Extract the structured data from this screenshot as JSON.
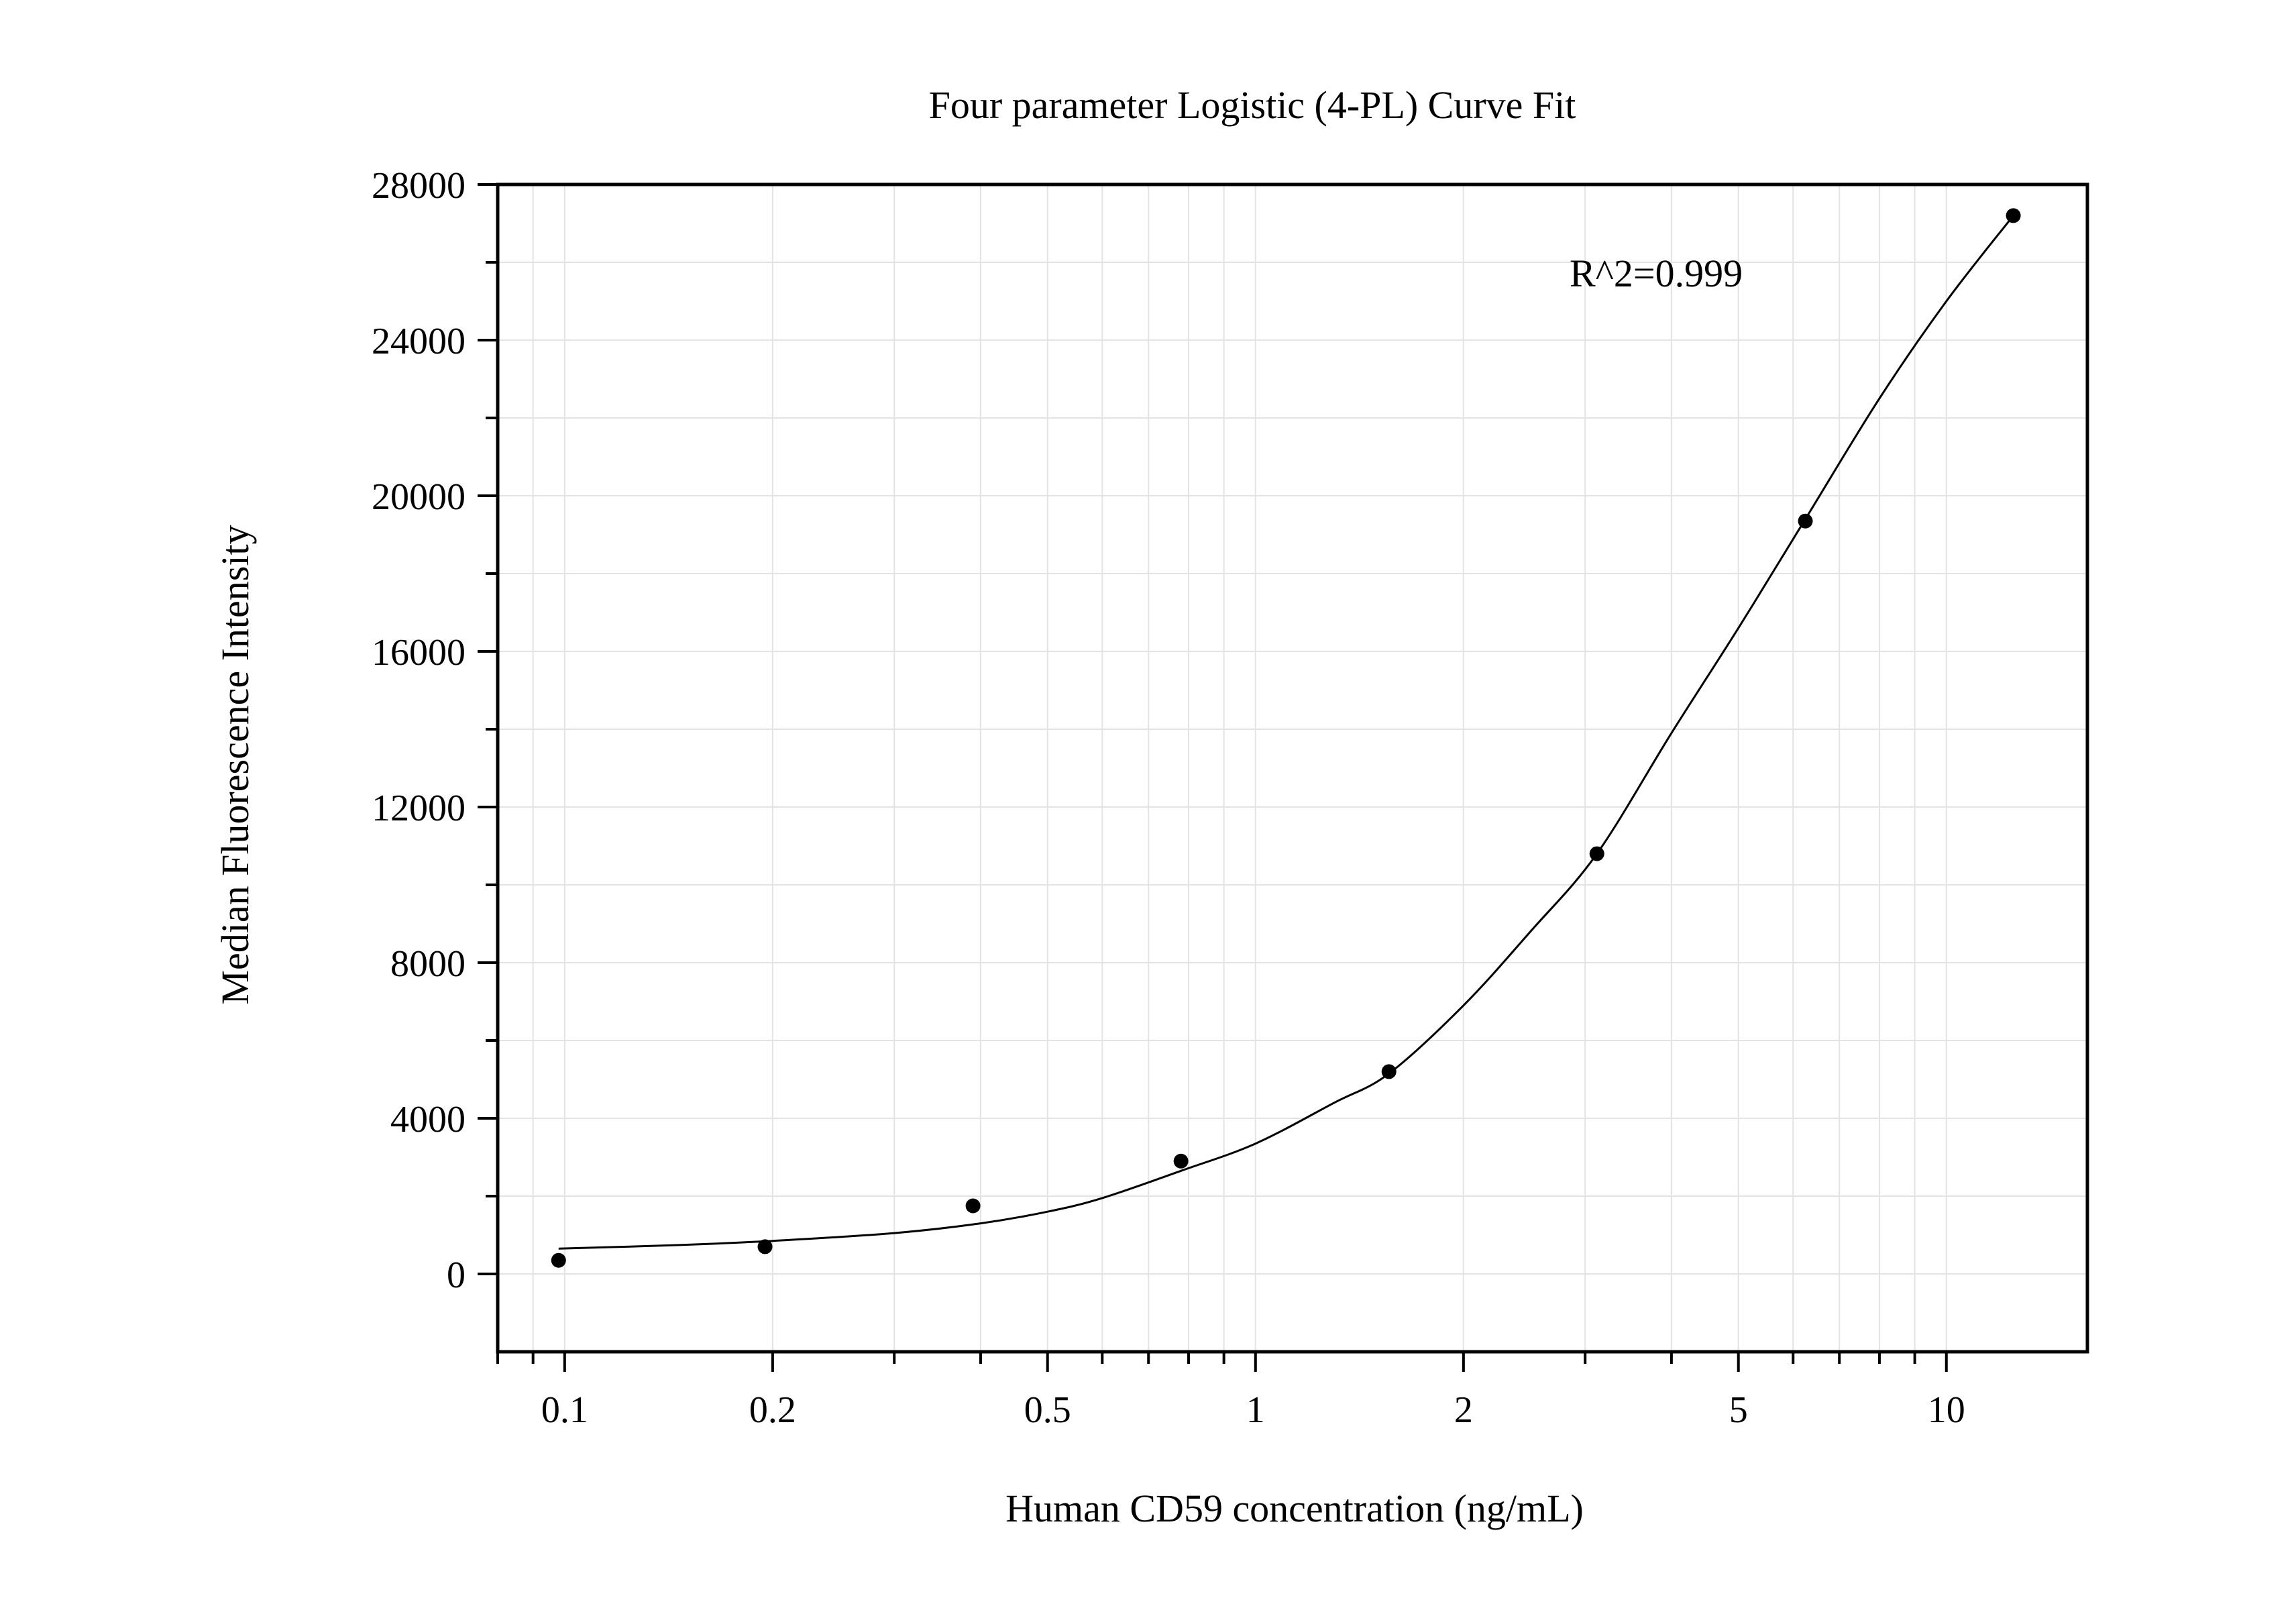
{
  "chart_data": {
    "type": "scatter",
    "title": "Four parameter Logistic (4-PL) Curve Fit",
    "xlabel": "Human CD59 concentration (ng/mL)",
    "ylabel": "Median Fluorescence Intensity",
    "x_scale": "log",
    "xlim": [
      0.08,
      16
    ],
    "ylim": [
      -2000,
      28000
    ],
    "x_ticks": [
      0.1,
      0.2,
      0.5,
      1,
      2,
      5,
      10
    ],
    "x_tick_labels": [
      "0.1",
      "0.2",
      "0.5",
      "1",
      "2",
      "5",
      "10"
    ],
    "y_ticks": [
      0,
      4000,
      8000,
      12000,
      16000,
      20000,
      24000,
      28000
    ],
    "y_tick_labels": [
      "0",
      "4000",
      "8000",
      "12000",
      "16000",
      "20000",
      "24000",
      "28000"
    ],
    "grid": true,
    "annotation": "R^2=0.999",
    "points": {
      "x": [
        0.098,
        0.195,
        0.39,
        0.78,
        1.56,
        3.12,
        6.25,
        12.5
      ],
      "y": [
        350,
        700,
        1750,
        2900,
        5200,
        10800,
        19350,
        27200
      ]
    },
    "fit_curve": {
      "x": [
        0.098,
        0.15,
        0.2,
        0.3,
        0.4,
        0.5,
        0.6,
        0.78,
        1.0,
        1.3,
        1.56,
        2.0,
        2.5,
        3.12,
        4.0,
        5.0,
        6.25,
        8.0,
        10.0,
        12.5
      ],
      "y": [
        650,
        750,
        850,
        1050,
        1300,
        1600,
        1950,
        2650,
        3350,
        4400,
        5150,
        6900,
        8800,
        10800,
        13900,
        16600,
        19400,
        22500,
        25000,
        27200
      ]
    },
    "colors": {
      "axis": "#000000",
      "grid": "#e3e3e3",
      "points": "#000000",
      "curve": "#000000"
    }
  }
}
